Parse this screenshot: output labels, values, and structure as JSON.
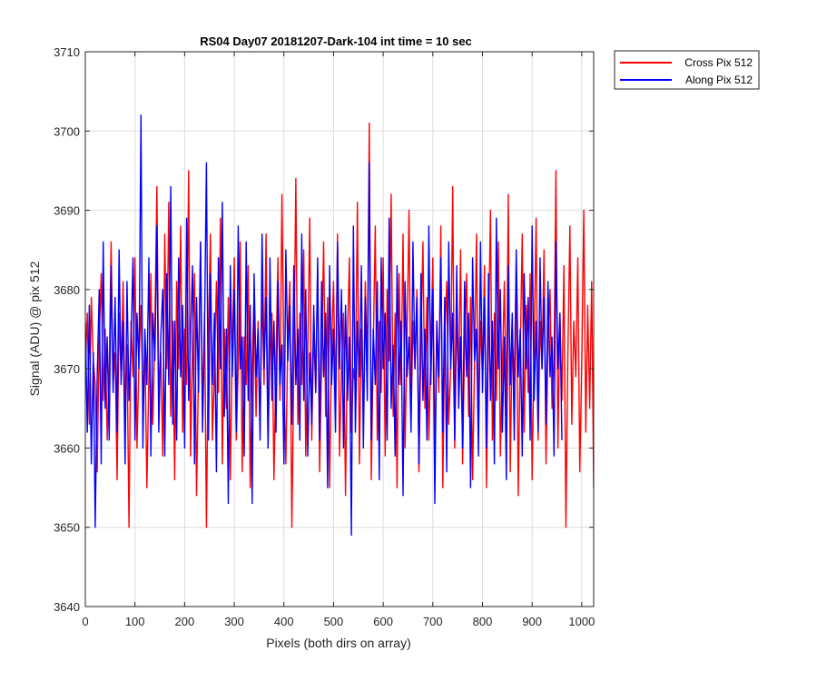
{
  "chart_data": {
    "type": "line",
    "title": "RS04 Day07 20181207-Dark-104 int time = 10 sec",
    "xlabel": "Pixels (both dirs on array)",
    "ylabel": "Signal (ADU) @ pix 512",
    "xlim": [
      0,
      1024
    ],
    "ylim": [
      3640,
      3710
    ],
    "xticks": [
      0,
      100,
      200,
      300,
      400,
      500,
      600,
      700,
      800,
      900,
      1000
    ],
    "yticks": [
      3640,
      3650,
      3660,
      3670,
      3680,
      3690,
      3700,
      3710
    ],
    "grid": true,
    "legend_position": "outside-top-right",
    "series": [
      {
        "name": "Cross Pix 512",
        "color": "#ff0000",
        "x_step": 4,
        "values": [
          3670,
          3677,
          3663,
          3679,
          3671,
          3668,
          3657,
          3674,
          3682,
          3666,
          3675,
          3661,
          3670,
          3686,
          3668,
          3672,
          3656,
          3677,
          3669,
          3681,
          3664,
          3673,
          3650,
          3676,
          3669,
          3684,
          3660,
          3671,
          3678,
          3666,
          3673,
          3655,
          3669,
          3682,
          3663,
          3675,
          3693,
          3667,
          3672,
          3659,
          3687,
          3670,
          3691,
          3664,
          3676,
          3656,
          3681,
          3670,
          3688,
          3662,
          3675,
          3668,
          3695,
          3659,
          3673,
          3682,
          3654,
          3670,
          3686,
          3664,
          3677,
          3650,
          3674,
          3687,
          3661,
          3670,
          3681,
          3667,
          3689,
          3658,
          3675,
          3665,
          3679,
          3656,
          3673,
          3684,
          3661,
          3670,
          3686,
          3657,
          3674,
          3668,
          3683,
          3655,
          3671,
          3679,
          3664,
          3676,
          3662,
          3680,
          3668,
          3687,
          3660,
          3673,
          3677,
          3656,
          3671,
          3684,
          3666,
          3692,
          3669,
          3658,
          3674,
          3681,
          3650,
          3670,
          3694,
          3663,
          3677,
          3668,
          3685,
          3659,
          3672,
          3689,
          3661,
          3675,
          3667,
          3683,
          3657,
          3671,
          3686,
          3664,
          3679,
          3655,
          3673,
          3681,
          3666,
          3687,
          3659,
          3670,
          3677,
          3654,
          3674,
          3684,
          3662,
          3670,
          3668,
          3691,
          3658,
          3675,
          3664,
          3681,
          3670,
          3701,
          3656,
          3673,
          3688,
          3661,
          3676,
          3667,
          3684,
          3659,
          3680,
          3671,
          3692,
          3664,
          3677,
          3655,
          3682,
          3668,
          3687,
          3660,
          3674,
          3690,
          3663,
          3676,
          3670,
          3680,
          3657,
          3673,
          3686,
          3665,
          3679,
          3661,
          3672,
          3684,
          3659,
          3676,
          3667,
          3688,
          3655,
          3674,
          3681,
          3663,
          3670,
          3693,
          3660,
          3677,
          3668,
          3685,
          3658,
          3673,
          3682,
          3664,
          3679,
          3656,
          3671,
          3687,
          3662,
          3676,
          3669,
          3683,
          3655,
          3674,
          3690,
          3661,
          3677,
          3666,
          3686,
          3659,
          3670,
          3681,
          3664,
          3692,
          3657,
          3675,
          3668,
          3684,
          3654,
          3672,
          3687,
          3662,
          3678,
          3667,
          3682,
          3656,
          3673,
          3689,
          3661,
          3676,
          3670,
          3685,
          3658,
          3674,
          3680,
          3665,
          3671,
          3695,
          3660,
          3677,
          3666,
          3683,
          3650,
          3672,
          3688,
          3663,
          3676,
          3669,
          3684,
          3657,
          3671,
          3690,
          3662,
          3678,
          3665,
          3681,
          3655,
          3674,
          3686,
          3660,
          3677,
          3680
        ]
      },
      {
        "name": "Along Pix 512",
        "color": "#0000ff",
        "x_step": 4,
        "values": [
          3676,
          3662,
          3678,
          3658,
          3672,
          3650,
          3669,
          3680,
          3658,
          3686,
          3665,
          3674,
          3661,
          3683,
          3667,
          3679,
          3662,
          3685,
          3668,
          3676,
          3658,
          3681,
          3666,
          3673,
          3684,
          3661,
          3677,
          3670,
          3702,
          3660,
          3675,
          3668,
          3684,
          3659,
          3677,
          3671,
          3688,
          3662,
          3674,
          3680,
          3659,
          3682,
          3668,
          3693,
          3663,
          3676,
          3661,
          3684,
          3669,
          3678,
          3660,
          3689,
          3666,
          3674,
          3683,
          3658,
          3679,
          3667,
          3686,
          3662,
          3675,
          3696,
          3661,
          3682,
          3668,
          3677,
          3657,
          3684,
          3670,
          3691,
          3664,
          3675,
          3653,
          3683,
          3669,
          3680,
          3662,
          3688,
          3670,
          3674,
          3659,
          3686,
          3666,
          3678,
          3653,
          3682,
          3669,
          3675,
          3661,
          3687,
          3670,
          3679,
          3660,
          3684,
          3666,
          3676,
          3662,
          3681,
          3668,
          3673,
          3658,
          3685,
          3671,
          3678,
          3663,
          3683,
          3668,
          3675,
          3661,
          3687,
          3666,
          3680,
          3659,
          3672,
          3663,
          3678,
          3667,
          3684,
          3661,
          3681,
          3669,
          3677,
          3655,
          3683,
          3668,
          3675,
          3662,
          3686,
          3670,
          3680,
          3660,
          3678,
          3666,
          3674,
          3649,
          3688,
          3662,
          3676,
          3669,
          3683,
          3660,
          3679,
          3666,
          3696,
          3661,
          3675,
          3668,
          3681,
          3656,
          3684,
          3670,
          3677,
          3661,
          3689,
          3665,
          3673,
          3659,
          3683,
          3668,
          3676,
          3654,
          3681,
          3669,
          3674,
          3662,
          3686,
          3670,
          3679,
          3658,
          3682,
          3666,
          3675,
          3661,
          3688,
          3668,
          3680,
          3653,
          3676,
          3669,
          3684,
          3662,
          3679,
          3657,
          3686,
          3670,
          3677,
          3661,
          3683,
          3665,
          3674,
          3660,
          3681,
          3669,
          3677,
          3655,
          3684,
          3671,
          3675,
          3659,
          3686,
          3667,
          3679,
          3660,
          3682,
          3666,
          3676,
          3658,
          3689,
          3670,
          3680,
          3662,
          3674,
          3656,
          3683,
          3668,
          3677,
          3661,
          3685,
          3669,
          3675,
          3659,
          3682,
          3670,
          3679,
          3661,
          3688,
          3666,
          3676,
          3662,
          3684,
          3670,
          3679,
          3663,
          3681,
          3669,
          3674,
          3659,
          3686,
          3670,
          3677,
          3661
        ]
      }
    ]
  }
}
